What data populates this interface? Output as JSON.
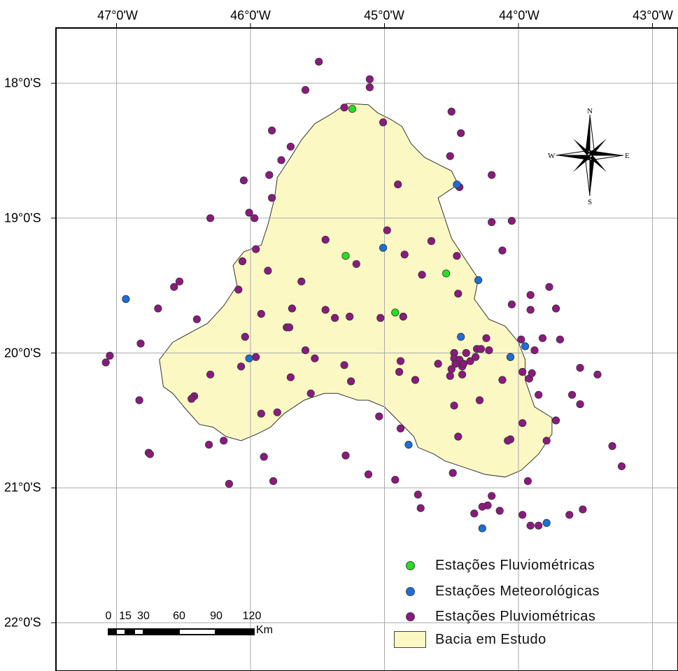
{
  "map": {
    "lon_labels": [
      "47°0'W",
      "46°0'W",
      "45°0'W",
      "44°0'W",
      "43°0'W"
    ],
    "lat_labels": [
      "18°0'S",
      "19°0'S",
      "20°0'S",
      "21°0'S",
      "22°0'S"
    ],
    "lon_values": [
      -47,
      -46,
      -45,
      -44,
      -43
    ],
    "lat_values": [
      -18,
      -19,
      -20,
      -21,
      -22
    ],
    "colors": {
      "basin_fill": "#fbf8c4",
      "fluviometric": "#22e022",
      "meteorological": "#1a6fd8",
      "pluviometric": "#8b1a7f",
      "grid": "#aaaaaa"
    },
    "compass": {
      "n": "N",
      "s": "S",
      "e": "E",
      "w": "W"
    },
    "basin_outline": [
      [
        -45.12,
        -18.16
      ],
      [
        -45.05,
        -18.22
      ],
      [
        -44.95,
        -18.27
      ],
      [
        -44.87,
        -18.32
      ],
      [
        -44.8,
        -18.45
      ],
      [
        -44.7,
        -18.55
      ],
      [
        -44.6,
        -18.6
      ],
      [
        -44.5,
        -18.65
      ],
      [
        -44.45,
        -18.75
      ],
      [
        -44.6,
        -18.85
      ],
      [
        -44.55,
        -19.0
      ],
      [
        -44.5,
        -19.15
      ],
      [
        -44.38,
        -19.33
      ],
      [
        -44.3,
        -19.45
      ],
      [
        -44.33,
        -19.6
      ],
      [
        -44.22,
        -19.75
      ],
      [
        -44.1,
        -19.8
      ],
      [
        -44.0,
        -19.92
      ],
      [
        -43.95,
        -20.05
      ],
      [
        -43.95,
        -20.2
      ],
      [
        -43.88,
        -20.4
      ],
      [
        -43.75,
        -20.48
      ],
      [
        -43.75,
        -20.6
      ],
      [
        -43.85,
        -20.75
      ],
      [
        -43.98,
        -20.87
      ],
      [
        -44.1,
        -20.92
      ],
      [
        -44.25,
        -20.9
      ],
      [
        -44.4,
        -20.85
      ],
      [
        -44.55,
        -20.8
      ],
      [
        -44.63,
        -20.75
      ],
      [
        -44.75,
        -20.7
      ],
      [
        -44.78,
        -20.62
      ],
      [
        -44.9,
        -20.5
      ],
      [
        -45.0,
        -20.4
      ],
      [
        -45.12,
        -20.35
      ],
      [
        -45.2,
        -20.35
      ],
      [
        -45.35,
        -20.3
      ],
      [
        -45.45,
        -20.3
      ],
      [
        -45.6,
        -20.35
      ],
      [
        -45.75,
        -20.45
      ],
      [
        -45.85,
        -20.55
      ],
      [
        -45.95,
        -20.6
      ],
      [
        -46.07,
        -20.65
      ],
      [
        -46.18,
        -20.62
      ],
      [
        -46.28,
        -20.55
      ],
      [
        -46.38,
        -20.53
      ],
      [
        -46.48,
        -20.42
      ],
      [
        -46.58,
        -20.3
      ],
      [
        -46.65,
        -20.25
      ],
      [
        -46.68,
        -20.05
      ],
      [
        -46.58,
        -19.92
      ],
      [
        -46.45,
        -19.85
      ],
      [
        -46.32,
        -19.78
      ],
      [
        -46.2,
        -19.65
      ],
      [
        -46.1,
        -19.5
      ],
      [
        -46.13,
        -19.35
      ],
      [
        -46.05,
        -19.25
      ],
      [
        -45.92,
        -19.2
      ],
      [
        -45.87,
        -19.05
      ],
      [
        -45.82,
        -18.85
      ],
      [
        -45.8,
        -18.7
      ],
      [
        -45.7,
        -18.55
      ],
      [
        -45.62,
        -18.42
      ],
      [
        -45.52,
        -18.3
      ],
      [
        -45.4,
        -18.23
      ],
      [
        -45.28,
        -18.15
      ]
    ],
    "fluviometric_stations": [
      [
        -45.24,
        -18.19
      ],
      [
        -45.29,
        -19.28
      ],
      [
        -44.92,
        -19.7
      ],
      [
        -44.54,
        -19.41
      ]
    ],
    "meteorological_stations": [
      [
        -44.46,
        -18.75
      ],
      [
        -45.01,
        -19.22
      ],
      [
        -44.3,
        -19.46
      ],
      [
        -44.43,
        -19.88
      ],
      [
        -46.93,
        -19.6
      ],
      [
        -46.01,
        -20.04
      ],
      [
        -44.06,
        -20.03
      ],
      [
        -43.95,
        -19.95
      ],
      [
        -44.82,
        -20.68
      ],
      [
        -44.27,
        -21.3
      ],
      [
        -43.79,
        -21.26
      ]
    ],
    "pluviometric_stations": [
      [
        -45.49,
        -17.84
      ],
      [
        -45.11,
        -17.97
      ],
      [
        -45.11,
        -18.03
      ],
      [
        -45.59,
        -18.05
      ],
      [
        -45.3,
        -18.18
      ],
      [
        -45.01,
        -18.29
      ],
      [
        -44.5,
        -18.21
      ],
      [
        -44.43,
        -18.37
      ],
      [
        -45.84,
        -18.35
      ],
      [
        -45.7,
        -18.47
      ],
      [
        -45.77,
        -18.57
      ],
      [
        -44.51,
        -18.54
      ],
      [
        -44.2,
        -18.68
      ],
      [
        -44.44,
        -18.77
      ],
      [
        -46.05,
        -18.72
      ],
      [
        -45.86,
        -18.68
      ],
      [
        -44.9,
        -18.75
      ],
      [
        -45.84,
        -18.85
      ],
      [
        -46.01,
        -18.96
      ],
      [
        -45.97,
        -19.0
      ],
      [
        -46.3,
        -19.0
      ],
      [
        -44.2,
        -19.03
      ],
      [
        -44.05,
        -19.02
      ],
      [
        -45.44,
        -19.16
      ],
      [
        -45.21,
        -19.34
      ],
      [
        -44.98,
        -19.09
      ],
      [
        -44.65,
        -19.17
      ],
      [
        -44.12,
        -19.24
      ],
      [
        -46.06,
        -19.32
      ],
      [
        -45.96,
        -19.23
      ],
      [
        -45.87,
        -19.39
      ],
      [
        -44.85,
        -19.27
      ],
      [
        -44.72,
        -19.42
      ],
      [
        -44.46,
        -19.28
      ],
      [
        -46.53,
        -19.47
      ],
      [
        -46.57,
        -19.51
      ],
      [
        -46.09,
        -19.53
      ],
      [
        -45.62,
        -19.47
      ],
      [
        -43.77,
        -19.51
      ],
      [
        -43.91,
        -19.57
      ],
      [
        -44.45,
        -19.56
      ],
      [
        -46.69,
        -19.67
      ],
      [
        -45.92,
        -19.71
      ],
      [
        -45.69,
        -19.67
      ],
      [
        -45.44,
        -19.68
      ],
      [
        -45.26,
        -19.73
      ],
      [
        -45.03,
        -19.74
      ],
      [
        -44.86,
        -19.73
      ],
      [
        -44.05,
        -19.64
      ],
      [
        -43.91,
        -19.68
      ],
      [
        -43.72,
        -19.67
      ],
      [
        -46.4,
        -19.75
      ],
      [
        -45.73,
        -19.81
      ],
      [
        -45.71,
        -19.81
      ],
      [
        -45.37,
        -19.74
      ],
      [
        -43.98,
        -19.9
      ],
      [
        -43.88,
        -19.98
      ],
      [
        -43.69,
        -19.9
      ],
      [
        -43.82,
        -19.89
      ],
      [
        -44.24,
        -19.89
      ],
      [
        -46.82,
        -19.93
      ],
      [
        -46.04,
        -19.88
      ],
      [
        -45.59,
        -19.98
      ],
      [
        -45.52,
        -20.04
      ],
      [
        -45.96,
        -20.03
      ],
      [
        -44.48,
        -20.0
      ],
      [
        -44.39,
        -20.0
      ],
      [
        -44.31,
        -19.97
      ],
      [
        -44.28,
        -19.97
      ],
      [
        -44.48,
        -20.04
      ],
      [
        -44.44,
        -20.05
      ],
      [
        -44.36,
        -20.06
      ],
      [
        -44.32,
        -20.03
      ],
      [
        -44.42,
        -20.1
      ],
      [
        -44.5,
        -20.12
      ],
      [
        -44.41,
        -20.08
      ],
      [
        -44.47,
        -20.08
      ],
      [
        -44.51,
        -20.17
      ],
      [
        -44.6,
        -20.08
      ],
      [
        -44.22,
        -19.98
      ],
      [
        -44.06,
        -20.03
      ],
      [
        -47.05,
        -20.02
      ],
      [
        -47.08,
        -20.07
      ],
      [
        -46.3,
        -20.16
      ],
      [
        -46.07,
        -20.1
      ],
      [
        -45.7,
        -20.18
      ],
      [
        -45.3,
        -20.09
      ],
      [
        -45.25,
        -20.21
      ],
      [
        -44.88,
        -20.06
      ],
      [
        -44.77,
        -20.2
      ],
      [
        -44.89,
        -20.14
      ],
      [
        -44.42,
        -20.16
      ],
      [
        -44.12,
        -20.2
      ],
      [
        -43.97,
        -20.14
      ],
      [
        -43.92,
        -20.19
      ],
      [
        -43.9,
        -20.15
      ],
      [
        -43.54,
        -20.11
      ],
      [
        -43.41,
        -20.16
      ],
      [
        -46.83,
        -20.35
      ],
      [
        -46.42,
        -20.32
      ],
      [
        -46.44,
        -20.34
      ],
      [
        -45.55,
        -20.3
      ],
      [
        -44.29,
        -20.35
      ],
      [
        -43.85,
        -20.31
      ],
      [
        -43.6,
        -20.31
      ],
      [
        -43.54,
        -20.38
      ],
      [
        -44.48,
        -20.39
      ],
      [
        -45.92,
        -20.45
      ],
      [
        -45.8,
        -20.44
      ],
      [
        -45.04,
        -20.47
      ],
      [
        -43.72,
        -20.5
      ],
      [
        -43.97,
        -20.52
      ],
      [
        -44.88,
        -20.56
      ],
      [
        -44.45,
        -20.62
      ],
      [
        -44.06,
        -20.64
      ],
      [
        -44.08,
        -20.65
      ],
      [
        -43.79,
        -20.65
      ],
      [
        -46.31,
        -20.68
      ],
      [
        -46.2,
        -20.65
      ],
      [
        -46.76,
        -20.74
      ],
      [
        -46.75,
        -20.75
      ],
      [
        -45.9,
        -20.77
      ],
      [
        -45.29,
        -20.76
      ],
      [
        -43.3,
        -20.69
      ],
      [
        -43.23,
        -20.84
      ],
      [
        -44.49,
        -20.89
      ],
      [
        -46.16,
        -20.97
      ],
      [
        -45.83,
        -20.95
      ],
      [
        -45.12,
        -20.9
      ],
      [
        -44.92,
        -20.94
      ],
      [
        -43.93,
        -20.95
      ],
      [
        -44.75,
        -21.05
      ],
      [
        -44.73,
        -21.15
      ],
      [
        -44.2,
        -21.06
      ],
      [
        -44.23,
        -21.13
      ],
      [
        -44.27,
        -21.14
      ],
      [
        -44.33,
        -21.19
      ],
      [
        -44.14,
        -21.17
      ],
      [
        -43.97,
        -21.2
      ],
      [
        -43.85,
        -21.28
      ],
      [
        -43.91,
        -21.28
      ],
      [
        -43.62,
        -21.2
      ],
      [
        -43.52,
        -21.16
      ]
    ]
  },
  "scale": {
    "ticks": [
      "0",
      "15",
      "30",
      "60",
      "90",
      "120"
    ],
    "tick_km": [
      0,
      15,
      30,
      60,
      90,
      120
    ],
    "unit": "Km"
  },
  "legend": {
    "fluviometric": "Estações Fluviométricas",
    "meteorological": "Estações Meteorológicas",
    "pluviometric": "Estações Pluviométricas",
    "basin": "Bacia em Estudo"
  }
}
